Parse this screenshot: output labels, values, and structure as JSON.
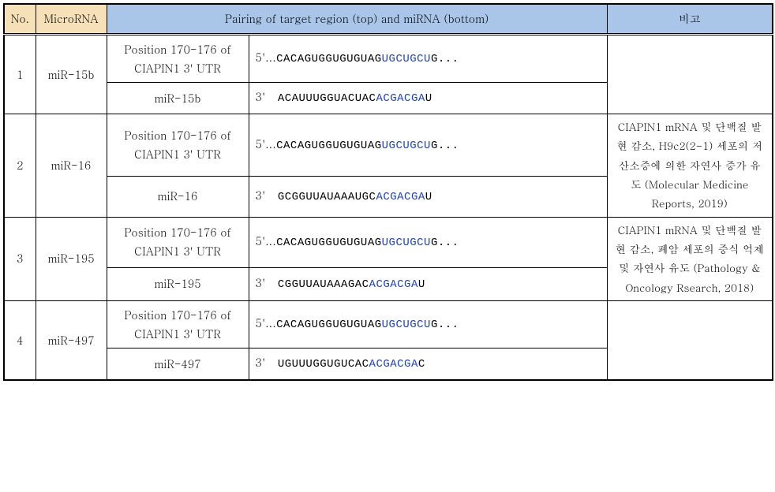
{
  "header": {
    "no": "No.",
    "microrna": "MicroRNA",
    "pairing": "Pairing of target region (top) and miRNA (bottom)",
    "note": "비고"
  },
  "rows": [
    {
      "no": "1",
      "mirna": "miR-15b",
      "position_label": "Position 170-176 of CIAPIN1 3' UTR",
      "seq_top_lead": "5'...",
      "seq_top_plain": "CACAGUGGUGUGUAG",
      "seq_top_hl": "UGCUGCU",
      "seq_top_tail": "G...",
      "mirna_label": "miR-15b",
      "seq_bot_lead": "3'   ",
      "seq_bot_plain": "ACAUUUGGUACUAC",
      "seq_bot_hl": "ACGACGA",
      "seq_bot_tail": "U",
      "note": ""
    },
    {
      "no": "2",
      "mirna": "miR-16",
      "position_label": "Position 170-176 of CIAPIN1 3' UTR",
      "seq_top_lead": "5'...",
      "seq_top_plain": "CACAGUGGUGUGUAG",
      "seq_top_hl": "UGCUGCU",
      "seq_top_tail": "G...",
      "mirna_label": "miR-16",
      "seq_bot_lead": "3'   ",
      "seq_bot_plain": "GCGGUUAUAAAUGC",
      "seq_bot_hl": "ACGACGA",
      "seq_bot_tail": "U",
      "note": "CIAPIN1 mRNA 및 단백질 발현 감소, H9c2(2-1) 세포의 저산소증에 의한 자연사 증가 유도 (Molecular Medicine Reports, 2019)"
    },
    {
      "no": "3",
      "mirna": "miR-195",
      "position_label": "Position 170-176 of CIAPIN1 3' UTR",
      "seq_top_lead": "5'...",
      "seq_top_plain": "CACAGUGGUGUGUAG",
      "seq_top_hl": "UGCUGCU",
      "seq_top_tail": "G...",
      "mirna_label": "miR-195",
      "seq_bot_lead": "3'   ",
      "seq_bot_plain": "CGGUUAUAAAGAC",
      "seq_bot_hl": "ACGACGA",
      "seq_bot_tail": "U",
      "note": "CIAPIN1 mRNA 및 단백질 발현 감소, 폐암 세포의 증식 억제 및 자연사 유도 (Pathology & Oncology Rsearch, 2018)"
    },
    {
      "no": "4",
      "mirna": "miR-497",
      "position_label": "Position 170-176 of CIAPIN1 3' UTR",
      "seq_top_lead": "5'...",
      "seq_top_plain": "CACAGUGGUGUGUAG",
      "seq_top_hl": "UGCUGCU",
      "seq_top_tail": "G...",
      "mirna_label": "miR-497",
      "seq_bot_lead": "3'   ",
      "seq_bot_plain": "UGUUUGGUGUCAC",
      "seq_bot_hl": "ACGACGA",
      "seq_bot_tail": "C",
      "note": ""
    }
  ],
  "style": {
    "header_no_bg": "#f5e0b8",
    "header_pair_bg": "#a9c5e8",
    "highlight_color": "#1a3fd6",
    "border_color": "#000000"
  }
}
